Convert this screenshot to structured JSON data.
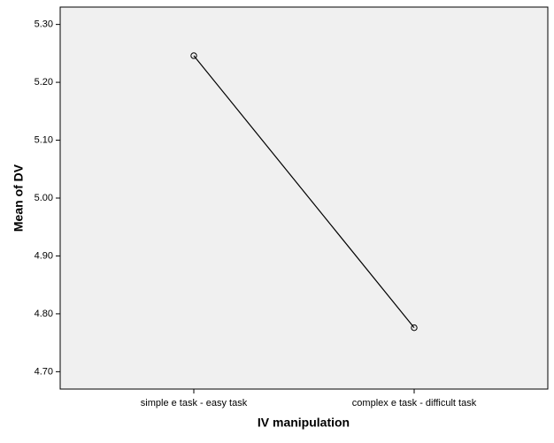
{
  "chart_data": {
    "type": "line",
    "x_label": "IV manipulation",
    "y_label": "Mean of DV",
    "categories": [
      "simple e task - easy task",
      "complex e task - difficult task"
    ],
    "series": [
      {
        "name": "Mean of DV",
        "color": "#000000",
        "values": [
          5.246,
          4.776
        ]
      }
    ],
    "ylim": [
      4.67,
      5.33
    ],
    "yticks": [
      {
        "value": 4.7,
        "label": "4.70"
      },
      {
        "value": 4.8,
        "label": "4.80"
      },
      {
        "value": 4.9,
        "label": "4.90"
      },
      {
        "value": 5.0,
        "label": "5.00"
      },
      {
        "value": 5.1,
        "label": "5.10"
      },
      {
        "value": 5.2,
        "label": "5.20"
      },
      {
        "value": 5.3,
        "label": "5.30"
      }
    ],
    "grid": false
  }
}
